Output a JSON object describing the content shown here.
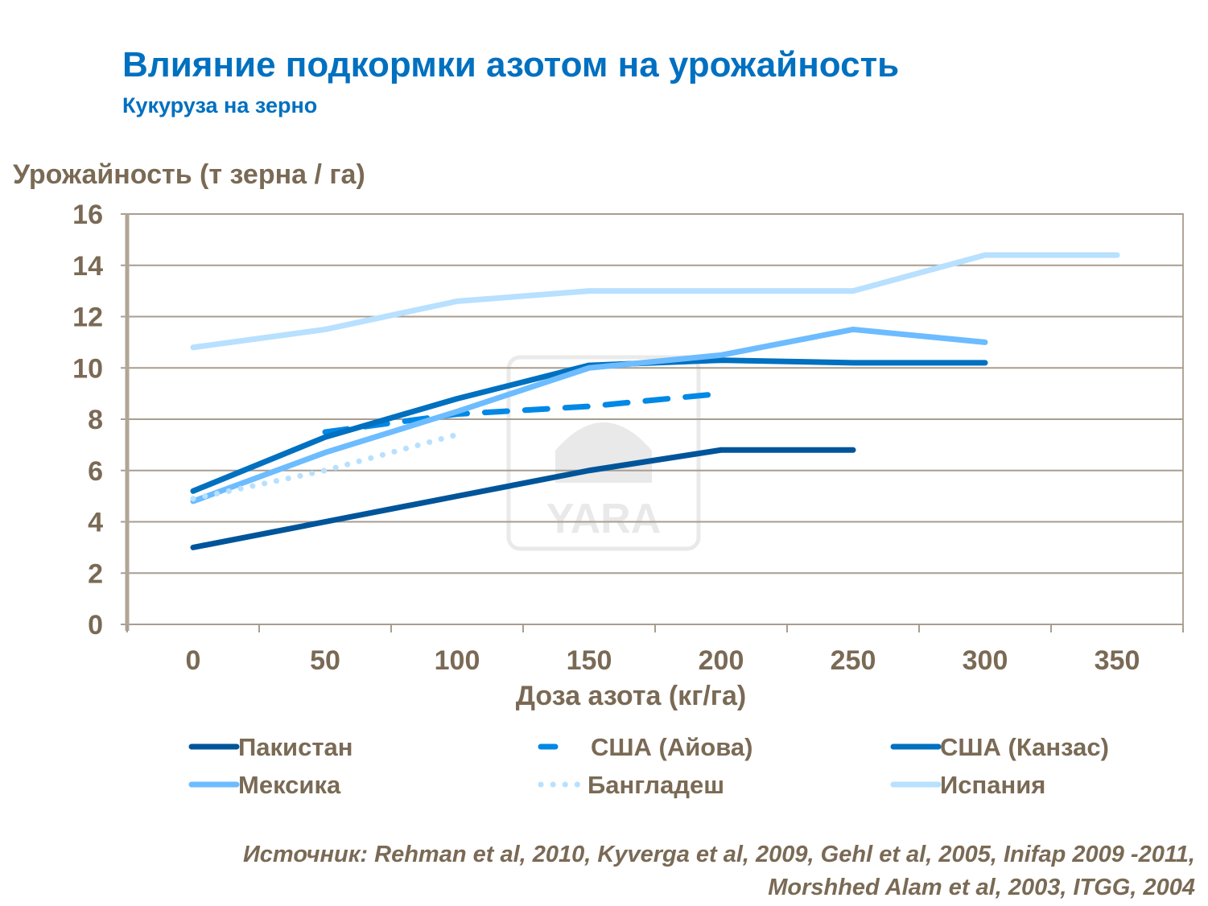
{
  "title": "Влияние подкормки азотом на урожайность",
  "subtitle": "Кукуруза на зерно",
  "source_line1": "Источник: Rehman et al, 2010, Kyverga et al, 2009, Gehl et al, 2005, Inifap 2009 -2011,",
  "source_line2": "Morshhed Alam et al, 2003, ITGG, 2004",
  "watermark": "YARA",
  "chart_data": {
    "type": "line",
    "title": "Влияние подкормки азотом на урожайность",
    "subtitle": "Кукуруза на зерно",
    "xlabel": "Доза азота (кг/га)",
    "ylabel": "Урожайность (т зерна / га)",
    "categories": [
      "0",
      "50",
      "100",
      "150",
      "200",
      "250",
      "300",
      "350"
    ],
    "ylim": [
      0,
      16
    ],
    "yticks": [
      "0",
      "2",
      "4",
      "6",
      "8",
      "10",
      "12",
      "14",
      "16"
    ],
    "grid": true,
    "legend_position": "bottom",
    "series": [
      {
        "name": "Пакистан",
        "color": "#00559a",
        "style": "solid",
        "values": [
          3.0,
          4.0,
          5.0,
          6.0,
          6.8,
          6.8,
          null,
          null
        ]
      },
      {
        "name": "США (Айова)",
        "color": "#0088e6",
        "style": "dashed",
        "values": [
          null,
          7.5,
          8.2,
          8.5,
          9.0,
          null,
          null,
          null
        ]
      },
      {
        "name": "США (Канзас)",
        "color": "#0070c0",
        "style": "solid",
        "values": [
          5.2,
          7.3,
          8.8,
          10.1,
          10.3,
          10.2,
          10.2,
          null
        ]
      },
      {
        "name": "Мексика",
        "color": "#6cbcff",
        "style": "solid",
        "values": [
          4.8,
          6.7,
          8.3,
          10.0,
          10.5,
          11.5,
          11.0,
          null
        ]
      },
      {
        "name": "Бангладеш",
        "color": "#b8e0ff",
        "style": "dotted",
        "values": [
          4.9,
          6.0,
          7.4,
          null,
          null,
          null,
          null,
          null
        ]
      },
      {
        "name": "Испания",
        "color": "#b8e0ff",
        "style": "solid",
        "values": [
          10.8,
          11.5,
          12.6,
          13.0,
          13.0,
          13.0,
          14.4,
          14.4
        ]
      }
    ]
  }
}
